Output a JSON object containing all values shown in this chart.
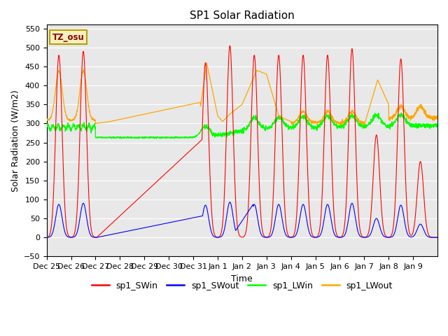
{
  "title": "SP1 Solar Radiation",
  "xlabel": "Time",
  "ylabel": "Solar Radiation (W/m2)",
  "ylim": [
    -50,
    560
  ],
  "bg_color": "#e8e8e8",
  "legend_entries": [
    "sp1_SWin",
    "sp1_SWout",
    "sp1_LWin",
    "sp1_LWout"
  ],
  "legend_colors": [
    "red",
    "blue",
    "green",
    "orange"
  ],
  "annotation_text": "TZ_osu",
  "annotation_color": "#8B0000",
  "annotation_bg": "#f5f0c0",
  "xtick_labels": [
    "Dec 25",
    "Dec 26",
    "Dec 27",
    "Dec 28",
    "Dec 29",
    "Dec 30",
    "Dec 31",
    "Jan 1",
    "Jan 2",
    "Jan 3",
    "Jan 4",
    "Jan 5",
    "Jan 6",
    "Jan 7",
    "Jan 8",
    "Jan 9"
  ],
  "n_days": 16
}
